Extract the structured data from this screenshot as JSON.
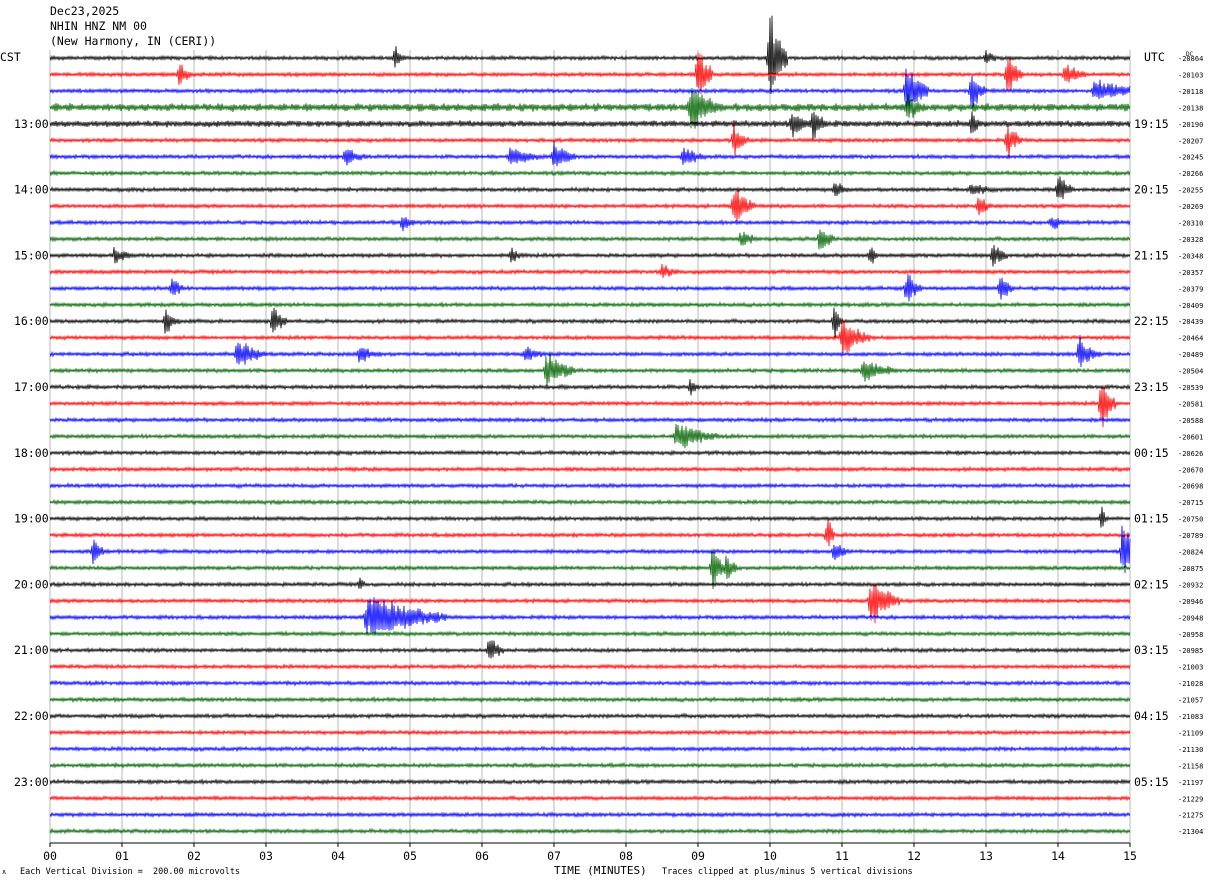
{
  "header": {
    "date": "Dec23,2025",
    "station": "NHIN HNZ NM 00",
    "location": "(New Harmony, IN (CERI))"
  },
  "chart_data": {
    "type": "line",
    "title": "NHIN HNZ NM 00",
    "xlabel": "TIME (MINUTES)",
    "left_axis_label": "CST",
    "right_axis_label": "UTC",
    "offset_header": "DC",
    "x_range": [
      0,
      15
    ],
    "x_ticks": [
      "00",
      "01",
      "02",
      "03",
      "04",
      "05",
      "06",
      "07",
      "08",
      "09",
      "10",
      "11",
      "12",
      "13",
      "14",
      "15"
    ],
    "trace_colors": [
      "#000000",
      "#ff0000",
      "#0000ff",
      "#006400"
    ],
    "cst_labels": [
      {
        "trace": 4,
        "label": "13:00"
      },
      {
        "trace": 8,
        "label": "14:00"
      },
      {
        "trace": 12,
        "label": "15:00"
      },
      {
        "trace": 16,
        "label": "16:00"
      },
      {
        "trace": 20,
        "label": "17:00"
      },
      {
        "trace": 24,
        "label": "18:00"
      },
      {
        "trace": 28,
        "label": "19:00"
      },
      {
        "trace": 32,
        "label": "20:00"
      },
      {
        "trace": 36,
        "label": "21:00"
      },
      {
        "trace": 40,
        "label": "22:00"
      },
      {
        "trace": 44,
        "label": "23:00"
      }
    ],
    "utc_labels": [
      {
        "trace": 4,
        "label": "19:15"
      },
      {
        "trace": 8,
        "label": "20:15"
      },
      {
        "trace": 12,
        "label": "21:15"
      },
      {
        "trace": 16,
        "label": "22:15"
      },
      {
        "trace": 20,
        "label": "23:15"
      },
      {
        "trace": 24,
        "label": "00:15"
      },
      {
        "trace": 28,
        "label": "01:15"
      },
      {
        "trace": 32,
        "label": "02:15"
      },
      {
        "trace": 36,
        "label": "03:15"
      },
      {
        "trace": 40,
        "label": "04:15"
      },
      {
        "trace": 44,
        "label": "05:15"
      }
    ],
    "dc_offsets": [
      "-20864",
      "-20103",
      "-20118",
      "-20138",
      "-20190",
      "-20207",
      "-20245",
      "-20266",
      "-20255",
      "-20269",
      "-20310",
      "-20328",
      "-20348",
      "-20357",
      "-20379",
      "-20409",
      "-20439",
      "-20464",
      "-20489",
      "-20504",
      "-20539",
      "-20581",
      "-20588",
      "-20601",
      "-20626",
      "-20670",
      "-20698",
      "-20715",
      "-20750",
      "-20789",
      "-20824",
      "-20875",
      "-20932",
      "-20946",
      "-20948",
      "-20958",
      "-20985",
      "-21003",
      "-21028",
      "-21057",
      "-21083",
      "-21109",
      "-21130",
      "-21158",
      "-21197",
      "-21229",
      "-21275",
      "-21304"
    ],
    "events": [
      {
        "trace": 0,
        "minute": 4.8,
        "amp": 0.9,
        "dur": 0.15
      },
      {
        "trace": 0,
        "minute": 10.0,
        "amp": 3.6,
        "dur": 0.25
      },
      {
        "trace": 0,
        "minute": 13.0,
        "amp": 0.6,
        "dur": 0.2
      },
      {
        "trace": 1,
        "minute": 1.8,
        "amp": 1.2,
        "dur": 0.15
      },
      {
        "trace": 1,
        "minute": 9.0,
        "amp": 2.3,
        "dur": 0.2
      },
      {
        "trace": 1,
        "minute": 13.3,
        "amp": 1.6,
        "dur": 0.2
      },
      {
        "trace": 1,
        "minute": 14.1,
        "amp": 1.0,
        "dur": 0.3
      },
      {
        "trace": 2,
        "minute": 11.9,
        "amp": 2.2,
        "dur": 0.3
      },
      {
        "trace": 2,
        "minute": 12.8,
        "amp": 1.6,
        "dur": 0.2
      },
      {
        "trace": 2,
        "minute": 14.5,
        "amp": 0.9,
        "dur": 0.8
      },
      {
        "trace": 3,
        "minute": 8.9,
        "amp": 1.9,
        "dur": 0.4
      },
      {
        "trace": 3,
        "minute": 11.9,
        "amp": 1.2,
        "dur": 0.3
      },
      {
        "trace": 4,
        "minute": 10.3,
        "amp": 1.1,
        "dur": 0.3
      },
      {
        "trace": 4,
        "minute": 10.6,
        "amp": 1.3,
        "dur": 0.2
      },
      {
        "trace": 4,
        "minute": 12.8,
        "amp": 1.0,
        "dur": 0.15
      },
      {
        "trace": 5,
        "minute": 9.5,
        "amp": 1.2,
        "dur": 0.2
      },
      {
        "trace": 5,
        "minute": 13.3,
        "amp": 1.4,
        "dur": 0.2
      },
      {
        "trace": 6,
        "minute": 4.1,
        "amp": 0.8,
        "dur": 0.3
      },
      {
        "trace": 6,
        "minute": 6.4,
        "amp": 1.0,
        "dur": 0.4
      },
      {
        "trace": 6,
        "minute": 7.0,
        "amp": 1.3,
        "dur": 0.3
      },
      {
        "trace": 6,
        "minute": 8.8,
        "amp": 0.9,
        "dur": 0.3
      },
      {
        "trace": 8,
        "minute": 10.9,
        "amp": 0.8,
        "dur": 0.2
      },
      {
        "trace": 8,
        "minute": 12.8,
        "amp": 0.6,
        "dur": 0.4
      },
      {
        "trace": 8,
        "minute": 14.0,
        "amp": 1.3,
        "dur": 0.2
      },
      {
        "trace": 9,
        "minute": 9.5,
        "amp": 1.6,
        "dur": 0.3
      },
      {
        "trace": 9,
        "minute": 12.9,
        "amp": 0.9,
        "dur": 0.2
      },
      {
        "trace": 10,
        "minute": 4.9,
        "amp": 0.8,
        "dur": 0.2
      },
      {
        "trace": 10,
        "minute": 13.9,
        "amp": 0.6,
        "dur": 0.3
      },
      {
        "trace": 11,
        "minute": 9.6,
        "amp": 0.7,
        "dur": 0.3
      },
      {
        "trace": 11,
        "minute": 10.7,
        "amp": 1.2,
        "dur": 0.2
      },
      {
        "trace": 12,
        "minute": 0.9,
        "amp": 0.7,
        "dur": 0.3
      },
      {
        "trace": 12,
        "minute": 6.4,
        "amp": 0.7,
        "dur": 0.2
      },
      {
        "trace": 12,
        "minute": 11.4,
        "amp": 1.0,
        "dur": 0.1
      },
      {
        "trace": 12,
        "minute": 13.1,
        "amp": 1.1,
        "dur": 0.2
      },
      {
        "trace": 13,
        "minute": 8.5,
        "amp": 0.6,
        "dur": 0.3
      },
      {
        "trace": 14,
        "minute": 1.7,
        "amp": 1.0,
        "dur": 0.15
      },
      {
        "trace": 14,
        "minute": 11.9,
        "amp": 1.4,
        "dur": 0.2
      },
      {
        "trace": 14,
        "minute": 13.2,
        "amp": 1.1,
        "dur": 0.2
      },
      {
        "trace": 16,
        "minute": 1.6,
        "amp": 1.0,
        "dur": 0.2
      },
      {
        "trace": 16,
        "minute": 3.1,
        "amp": 1.2,
        "dur": 0.2
      },
      {
        "trace": 16,
        "minute": 10.9,
        "amp": 1.7,
        "dur": 0.1
      },
      {
        "trace": 17,
        "minute": 11.0,
        "amp": 1.6,
        "dur": 0.4
      },
      {
        "trace": 18,
        "minute": 2.6,
        "amp": 1.2,
        "dur": 0.4
      },
      {
        "trace": 18,
        "minute": 4.3,
        "amp": 0.8,
        "dur": 0.3
      },
      {
        "trace": 18,
        "minute": 6.6,
        "amp": 0.7,
        "dur": 0.3
      },
      {
        "trace": 18,
        "minute": 14.3,
        "amp": 1.3,
        "dur": 0.3
      },
      {
        "trace": 19,
        "minute": 6.9,
        "amp": 1.4,
        "dur": 0.4
      },
      {
        "trace": 19,
        "minute": 11.3,
        "amp": 0.9,
        "dur": 0.5
      },
      {
        "trace": 20,
        "minute": 8.9,
        "amp": 0.7,
        "dur": 0.15
      },
      {
        "trace": 21,
        "minute": 14.6,
        "amp": 2.3,
        "dur": 0.2
      },
      {
        "trace": 23,
        "minute": 8.7,
        "amp": 1.1,
        "dur": 0.6
      },
      {
        "trace": 28,
        "minute": 14.6,
        "amp": 1.0,
        "dur": 0.1
      },
      {
        "trace": 29,
        "minute": 10.8,
        "amp": 1.5,
        "dur": 0.1
      },
      {
        "trace": 30,
        "minute": 0.6,
        "amp": 1.3,
        "dur": 0.15
      },
      {
        "trace": 30,
        "minute": 10.9,
        "amp": 0.9,
        "dur": 0.2
      },
      {
        "trace": 30,
        "minute": 14.9,
        "amp": 2.2,
        "dur": 0.3
      },
      {
        "trace": 31,
        "minute": 9.2,
        "amp": 1.9,
        "dur": 0.2
      },
      {
        "trace": 31,
        "minute": 9.4,
        "amp": 1.3,
        "dur": 0.15
      },
      {
        "trace": 32,
        "minute": 4.3,
        "amp": 0.6,
        "dur": 0.1
      },
      {
        "trace": 33,
        "minute": 11.4,
        "amp": 2.0,
        "dur": 0.4
      },
      {
        "trace": 34,
        "minute": 4.4,
        "amp": 1.8,
        "dur": 1.1
      },
      {
        "trace": 36,
        "minute": 6.1,
        "amp": 1.2,
        "dur": 0.2
      }
    ]
  },
  "footer": {
    "division_note": "Each Vertical Division =  200.00 microvolts",
    "clip_note": "Traces clipped at plus/minus 5 vertical divisions",
    "corner_mark": "∧"
  }
}
